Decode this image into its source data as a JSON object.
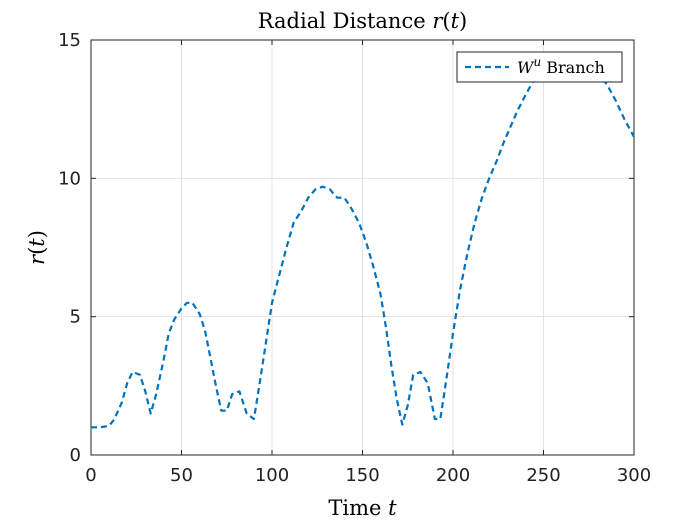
{
  "chart_data": {
    "type": "line",
    "title": "Radial Distance r(t)",
    "xlabel": "Time t",
    "ylabel": "r(t)",
    "xlim": [
      0,
      300
    ],
    "ylim": [
      0,
      15
    ],
    "xticks": [
      0,
      50,
      100,
      150,
      200,
      250,
      300
    ],
    "yticks": [
      0,
      5,
      10,
      15
    ],
    "grid": true,
    "legend_position": "top-right",
    "series": [
      {
        "name": "W^u Branch",
        "color": "#0072BD",
        "line_style": "dashed",
        "x": [
          0,
          5,
          10,
          13,
          17,
          20,
          23,
          27,
          30,
          33,
          36,
          40,
          43,
          46,
          50,
          53,
          56,
          60,
          63,
          66,
          69,
          72,
          75,
          78,
          82,
          86,
          90,
          93,
          96,
          100,
          104,
          108,
          112,
          116,
          120,
          124,
          128,
          132,
          136,
          140,
          144,
          148,
          152,
          156,
          160,
          163,
          166,
          169,
          172,
          175,
          178,
          182,
          186,
          190,
          193,
          196,
          200,
          204,
          208,
          212,
          216,
          220,
          224,
          228,
          232,
          236,
          240,
          245,
          250,
          255,
          260,
          265,
          270,
          275,
          280,
          285,
          290,
          295,
          300
        ],
        "y": [
          1.0,
          1.0,
          1.05,
          1.3,
          1.9,
          2.6,
          3.0,
          2.9,
          2.3,
          1.5,
          2.2,
          3.4,
          4.4,
          4.9,
          5.3,
          5.5,
          5.5,
          5.1,
          4.5,
          3.5,
          2.5,
          1.6,
          1.6,
          2.2,
          2.3,
          1.5,
          1.3,
          2.5,
          3.8,
          5.5,
          6.5,
          7.5,
          8.4,
          8.8,
          9.3,
          9.6,
          9.7,
          9.6,
          9.3,
          9.3,
          8.9,
          8.4,
          7.7,
          6.8,
          5.8,
          4.6,
          3.2,
          2.0,
          1.1,
          1.8,
          2.9,
          3.0,
          2.6,
          1.3,
          1.3,
          2.6,
          4.4,
          6.0,
          7.3,
          8.4,
          9.3,
          10.0,
          10.6,
          11.3,
          11.9,
          12.5,
          13.0,
          13.6,
          14.0,
          14.3,
          14.4,
          14.4,
          14.3,
          14.1,
          13.8,
          13.4,
          12.8,
          12.1,
          11.5
        ]
      }
    ]
  }
}
